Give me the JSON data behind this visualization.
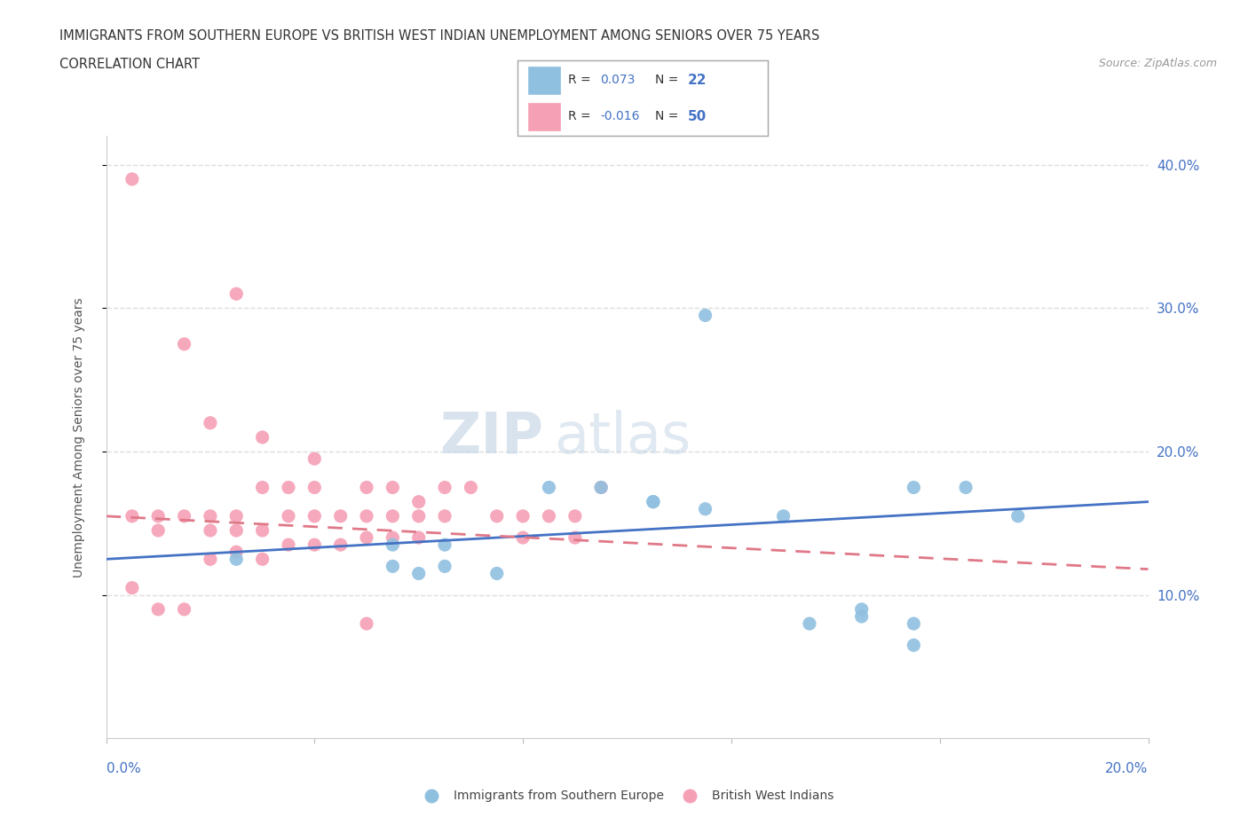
{
  "title_line1": "IMMIGRANTS FROM SOUTHERN EUROPE VS BRITISH WEST INDIAN UNEMPLOYMENT AMONG SENIORS OVER 75 YEARS",
  "title_line2": "CORRELATION CHART",
  "source_text": "Source: ZipAtlas.com",
  "ylabel": "Unemployment Among Seniors over 75 years",
  "xlim": [
    0.0,
    0.2
  ],
  "ylim": [
    0.0,
    0.42
  ],
  "ytick_vals": [
    0.1,
    0.2,
    0.3,
    0.4
  ],
  "ytick_labels": [
    "10.0%",
    "20.0%",
    "30.0%",
    "40.0%"
  ],
  "grid_color": "#dddddd",
  "blue_scatter_color": "#90c0e0",
  "pink_scatter_color": "#f5a0b5",
  "trend_blue_color": "#4472c4",
  "trend_pink_color": "#e07888",
  "legend_r_blue": "0.073",
  "legend_n_blue": "22",
  "legend_r_pink": "-0.016",
  "legend_n_pink": "50",
  "blue_x": [
    0.025,
    0.055,
    0.06,
    0.055,
    0.06,
    0.065,
    0.065,
    0.07,
    0.085,
    0.095,
    0.1,
    0.105,
    0.105,
    0.115,
    0.13,
    0.135,
    0.145,
    0.145,
    0.155,
    0.165,
    0.175,
    0.155
  ],
  "blue_y": [
    0.125,
    0.135,
    0.125,
    0.12,
    0.115,
    0.135,
    0.12,
    0.115,
    0.175,
    0.175,
    0.175,
    0.165,
    0.165,
    0.16,
    0.155,
    0.08,
    0.085,
    0.09,
    0.175,
    0.175,
    0.155,
    0.08
  ],
  "pink_x": [
    0.005,
    0.005,
    0.005,
    0.01,
    0.01,
    0.01,
    0.015,
    0.015,
    0.015,
    0.02,
    0.02,
    0.02,
    0.025,
    0.025,
    0.025,
    0.03,
    0.03,
    0.03,
    0.035,
    0.035,
    0.04,
    0.04,
    0.04,
    0.045,
    0.045,
    0.045,
    0.05,
    0.05,
    0.055,
    0.055,
    0.055,
    0.06,
    0.06,
    0.065,
    0.065,
    0.07,
    0.075,
    0.075,
    0.08,
    0.08,
    0.085,
    0.09,
    0.09,
    0.095,
    0.015,
    0.025,
    0.035,
    0.045,
    0.055,
    0.065
  ],
  "pink_y": [
    0.39,
    0.155,
    0.11,
    0.155,
    0.145,
    0.09,
    0.155,
    0.12,
    0.09,
    0.155,
    0.145,
    0.125,
    0.155,
    0.145,
    0.13,
    0.175,
    0.145,
    0.125,
    0.175,
    0.155,
    0.175,
    0.155,
    0.135,
    0.155,
    0.145,
    0.135,
    0.155,
    0.14,
    0.175,
    0.155,
    0.14,
    0.155,
    0.14,
    0.175,
    0.155,
    0.175,
    0.155,
    0.14,
    0.155,
    0.14,
    0.155,
    0.155,
    0.14,
    0.175,
    0.28,
    0.245,
    0.215,
    0.195,
    0.175,
    0.165
  ],
  "watermark_zip": "ZIP",
  "watermark_atlas": "atlas",
  "bg_color": "#ffffff",
  "title_color": "#333333",
  "source_color": "#999999",
  "axis_label_color": "#555555",
  "tick_color": "#4472c4"
}
